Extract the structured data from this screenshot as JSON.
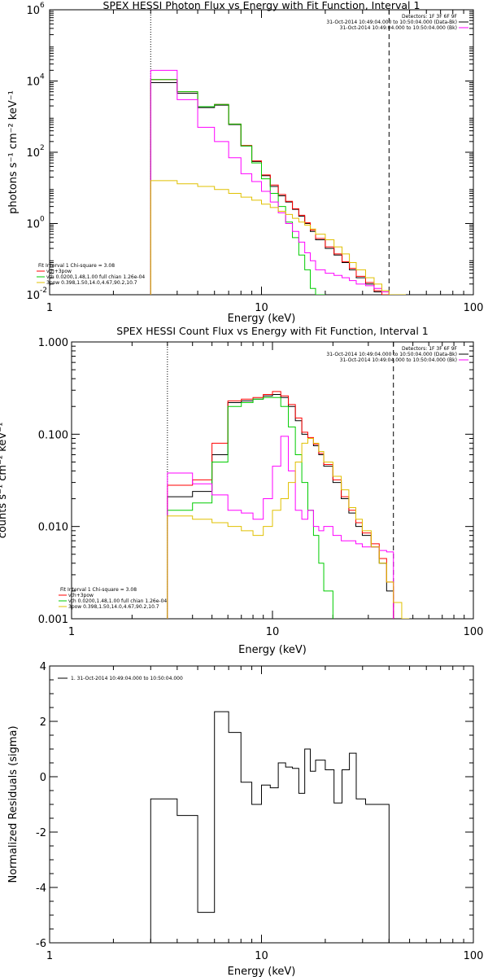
{
  "chart_data": [
    {
      "type": "line",
      "title": "SPEX HESSI Photon Flux vs Energy with Fit Function, Interval 1",
      "xlabel": "Energy (keV)",
      "ylabel": "photons s⁻¹ cm⁻² keV⁻¹",
      "xscale": "log",
      "yscale": "log",
      "xlim": [
        1,
        100
      ],
      "ylim": [
        0.01,
        1000000
      ],
      "xticks": [
        {
          "v": 1,
          "label": "1"
        },
        {
          "v": 10,
          "label": "10"
        },
        {
          "v": 100,
          "label": "100"
        }
      ],
      "yticks": [
        {
          "v": 0.01,
          "label": "10",
          "exp": "-2"
        },
        {
          "v": 1,
          "label": "10",
          "exp": "0"
        },
        {
          "v": 100,
          "label": "10",
          "exp": "2"
        },
        {
          "v": 10000,
          "label": "10",
          "exp": "4"
        },
        {
          "v": 1000000,
          "label": "10",
          "exp": "6"
        }
      ],
      "vlines": [
        {
          "x": 3,
          "style": "dotted"
        },
        {
          "x": 40,
          "style": "dashed"
        }
      ],
      "legend_top_right": [
        {
          "text": "Detectors: 1F 3F 6F 9F",
          "color": "#000000"
        },
        {
          "text": "31-Oct-2014 10:49:04.000 to 10:50:04.000 (Data-Bk)",
          "color": "#000000"
        },
        {
          "text": "31-Oct-2014 10:49:04.000 to 10:50:04.000 (Bk)",
          "color": "#ff00ff"
        }
      ],
      "legend_bottom_left": [
        {
          "text": "Fit Interval 1   Chi-square = 3.08",
          "color": "#000000"
        },
        {
          "text": "vth+3pow",
          "color": "#ff0000"
        },
        {
          "text": "vth 0.0200,1.48,1.00  full chian 1.26e-04",
          "color": "#00cc00"
        },
        {
          "text": "3pow 0.398,1.50,14.0,4.67,90.2,10.7",
          "color": "#e0c000"
        }
      ],
      "series": [
        {
          "color": "#000000",
          "edges": [
            3,
            4,
            5,
            6,
            7,
            8,
            9,
            10,
            11,
            12,
            13,
            14,
            15,
            16,
            17,
            18,
            20,
            22,
            24,
            26,
            28,
            31,
            34,
            37,
            40
          ],
          "values": [
            9000,
            4500,
            1800,
            2100,
            600,
            150,
            55,
            22,
            11,
            6,
            4,
            2.5,
            1.6,
            1.0,
            0.6,
            0.35,
            0.2,
            0.13,
            0.08,
            0.05,
            0.03,
            0.02,
            0.012,
            0.008
          ]
        },
        {
          "color": "#ff0000",
          "edges": [
            3,
            4,
            5,
            6,
            7,
            8,
            9,
            10,
            11,
            12,
            13,
            14,
            15,
            16,
            17,
            18,
            20,
            22,
            24,
            26,
            28,
            31,
            34,
            37,
            40
          ],
          "values": [
            11000,
            5000,
            1900,
            2200,
            620,
            155,
            57,
            23,
            12,
            6.5,
            4.2,
            2.6,
            1.7,
            1.05,
            0.65,
            0.38,
            0.22,
            0.14,
            0.085,
            0.055,
            0.033,
            0.022,
            0.013,
            0.009
          ]
        },
        {
          "color": "#00cc00",
          "edges": [
            3,
            4,
            5,
            6,
            7,
            8,
            9,
            10,
            11,
            12,
            13,
            14,
            15,
            16,
            17,
            18,
            20
          ],
          "values": [
            11000,
            5000,
            1900,
            2200,
            620,
            150,
            50,
            18,
            7,
            3,
            1.1,
            0.4,
            0.13,
            0.05,
            0.015,
            0.005
          ]
        },
        {
          "color": "#ff00ff",
          "edges": [
            3,
            4,
            5,
            6,
            7,
            8,
            9,
            10,
            11,
            12,
            13,
            14,
            15,
            16,
            17,
            18,
            20,
            22,
            24,
            26,
            28,
            31,
            34,
            37,
            40
          ],
          "values": [
            20000,
            3000,
            500,
            200,
            70,
            25,
            15,
            8,
            4,
            2,
            1,
            0.6,
            0.3,
            0.15,
            0.09,
            0.05,
            0.04,
            0.035,
            0.03,
            0.025,
            0.02,
            0.018,
            0.015,
            0.012
          ]
        },
        {
          "color": "#e0c000",
          "edges": [
            3,
            4,
            5,
            6,
            7,
            8,
            9,
            10,
            11,
            12,
            13,
            14,
            15,
            16,
            17,
            18,
            20,
            22,
            24,
            26,
            28,
            31,
            34,
            37,
            40,
            44,
            48
          ],
          "values": [
            16,
            13,
            11,
            9,
            7,
            5.5,
            4.5,
            3.5,
            2.8,
            2.2,
            1.8,
            1.4,
            1.1,
            0.9,
            0.7,
            0.5,
            0.35,
            0.22,
            0.14,
            0.08,
            0.05,
            0.03,
            0.02,
            0.013,
            0.01,
            0.007
          ]
        }
      ]
    },
    {
      "type": "line",
      "title": "SPEX HESSI Count Flux vs Energy with Fit Function, Interval 1",
      "xlabel": "Energy (keV)",
      "ylabel": "counts s⁻¹ cm⁻² keV⁻¹",
      "xscale": "log",
      "yscale": "log",
      "xlim": [
        1,
        100
      ],
      "ylim": [
        0.001,
        1
      ],
      "xticks": [
        {
          "v": 1,
          "label": "1"
        },
        {
          "v": 10,
          "label": "10"
        },
        {
          "v": 100,
          "label": "100"
        }
      ],
      "yticks": [
        {
          "v": 0.001,
          "label": "0.001",
          "exp": ""
        },
        {
          "v": 0.01,
          "label": "0.010",
          "exp": ""
        },
        {
          "v": 0.1,
          "label": "0.100",
          "exp": ""
        },
        {
          "v": 1,
          "label": "1.000",
          "exp": ""
        }
      ],
      "vlines": [
        {
          "x": 3,
          "style": "dotted"
        },
        {
          "x": 40,
          "style": "dashed"
        }
      ],
      "legend_top_right": [
        {
          "text": "Detectors: 1F 3F 6F 9F",
          "color": "#000000"
        },
        {
          "text": "31-Oct-2014 10:49:04.000 to 10:50:04.000 (Data-Bk)",
          "color": "#000000"
        },
        {
          "text": "31-Oct-2014 10:49:04.000 to 10:50:04.000 (Bk)",
          "color": "#ff00ff"
        }
      ],
      "legend_bottom_left": [
        {
          "text": "Fit Interval 1   Chi-square = 3.08",
          "color": "#000000"
        },
        {
          "text": "vth+3pow",
          "color": "#ff0000"
        },
        {
          "text": "vth 0.0200,1.48,1.00  full chian 1.26e-04",
          "color": "#00cc00"
        },
        {
          "text": "3pow 0.398,1.50,14.0,4.67,90.2,10.7",
          "color": "#e0c000"
        }
      ],
      "series": [
        {
          "color": "#000000",
          "edges": [
            3,
            4,
            5,
            6,
            7,
            8,
            9,
            10,
            11,
            12,
            13,
            14,
            15,
            16,
            17,
            18,
            20,
            22,
            24,
            26,
            28,
            31,
            34,
            37,
            40
          ],
          "values": [
            0.021,
            0.024,
            0.06,
            0.22,
            0.23,
            0.24,
            0.26,
            0.27,
            0.25,
            0.2,
            0.14,
            0.1,
            0.09,
            0.075,
            0.06,
            0.045,
            0.03,
            0.02,
            0.014,
            0.01,
            0.008,
            0.006,
            0.004,
            0.002
          ]
        },
        {
          "color": "#ff0000",
          "edges": [
            3,
            4,
            5,
            6,
            7,
            8,
            9,
            10,
            11,
            12,
            13,
            14,
            15,
            16,
            17,
            18,
            20,
            22,
            24,
            26,
            28,
            31,
            34,
            37,
            40
          ],
          "values": [
            0.028,
            0.032,
            0.08,
            0.23,
            0.24,
            0.25,
            0.27,
            0.29,
            0.26,
            0.21,
            0.15,
            0.105,
            0.092,
            0.078,
            0.062,
            0.047,
            0.032,
            0.021,
            0.015,
            0.011,
            0.0085,
            0.0065,
            0.0045,
            0.0025
          ]
        },
        {
          "color": "#00cc00",
          "edges": [
            3,
            4,
            5,
            6,
            7,
            8,
            9,
            10,
            11,
            12,
            13,
            14,
            15,
            16,
            17,
            18,
            20
          ],
          "values": [
            0.015,
            0.018,
            0.05,
            0.2,
            0.22,
            0.24,
            0.25,
            0.25,
            0.2,
            0.12,
            0.06,
            0.03,
            0.015,
            0.008,
            0.004,
            0.002
          ]
        },
        {
          "color": "#ff00ff",
          "edges": [
            3,
            4,
            5,
            6,
            7,
            8,
            9,
            10,
            11,
            12,
            13,
            14,
            15,
            16,
            17,
            18,
            20,
            22,
            24,
            26,
            28,
            31,
            34,
            37,
            40
          ],
          "values": [
            0.038,
            0.029,
            0.022,
            0.015,
            0.014,
            0.012,
            0.02,
            0.045,
            0.095,
            0.04,
            0.015,
            0.012,
            0.015,
            0.01,
            0.009,
            0.01,
            0.008,
            0.007,
            0.007,
            0.0065,
            0.006,
            0.006,
            0.0055,
            0.0053
          ]
        },
        {
          "color": "#e0c000",
          "edges": [
            3,
            4,
            5,
            6,
            7,
            8,
            9,
            10,
            11,
            12,
            13,
            14,
            15,
            16,
            17,
            18,
            20,
            22,
            24,
            26,
            28,
            31,
            34,
            37,
            40,
            44,
            48
          ],
          "values": [
            0.013,
            0.012,
            0.011,
            0.01,
            0.009,
            0.008,
            0.01,
            0.015,
            0.02,
            0.03,
            0.05,
            0.08,
            0.09,
            0.08,
            0.065,
            0.05,
            0.035,
            0.025,
            0.016,
            0.012,
            0.009,
            0.006,
            0.004,
            0.0025,
            0.0015,
            0.0009
          ]
        }
      ]
    },
    {
      "type": "line",
      "title": "",
      "xlabel": "Energy (keV)",
      "ylabel": "Normalized Residuals (sigma)",
      "xscale": "log",
      "yscale": "linear",
      "xlim": [
        1,
        100
      ],
      "ylim": [
        -6,
        4
      ],
      "xticks": [
        {
          "v": 1,
          "label": "1"
        },
        {
          "v": 10,
          "label": "10"
        },
        {
          "v": 100,
          "label": "100"
        }
      ],
      "yticks": [
        {
          "v": -6,
          "label": "-6",
          "exp": ""
        },
        {
          "v": -4,
          "label": "-4",
          "exp": ""
        },
        {
          "v": -2,
          "label": "-2",
          "exp": ""
        },
        {
          "v": 0,
          "label": "0",
          "exp": ""
        },
        {
          "v": 2,
          "label": "2",
          "exp": ""
        },
        {
          "v": 4,
          "label": "4",
          "exp": ""
        }
      ],
      "vlines": [],
      "legend_top_left": [
        {
          "text": "1. 31-Oct-2014 10:49:04.000 to 10:50:04.000",
          "color": "#000000"
        }
      ],
      "series": [
        {
          "color": "#000000",
          "edges": [
            3,
            4,
            5,
            6,
            7,
            8,
            9,
            10,
            11,
            12,
            13,
            14,
            15,
            16,
            17,
            18,
            20,
            22,
            24,
            26,
            28,
            31,
            34,
            37,
            40
          ],
          "values": [
            -0.8,
            -1.4,
            -4.9,
            2.35,
            1.6,
            -0.2,
            -1.0,
            -0.3,
            -0.4,
            0.5,
            0.35,
            0.3,
            -0.6,
            1.0,
            0.2,
            0.6,
            0.25,
            -0.95,
            0.25,
            0.85,
            -0.8,
            -1.0,
            -1.0,
            -1.0
          ]
        }
      ]
    }
  ]
}
